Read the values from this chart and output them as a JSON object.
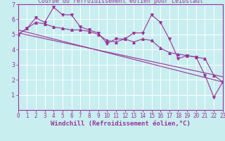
{
  "title": "Courbe du refroidissement éolien pour Leibstadt",
  "xlabel": "Windchill (Refroidissement éolien,°C)",
  "bg_color": "#c8eef0",
  "line_color": "#993399",
  "grid_color": "#ffffff",
  "axis_color": "#660066",
  "xlim": [
    0,
    23
  ],
  "ylim": [
    0,
    7
  ],
  "xticks": [
    0,
    1,
    2,
    3,
    4,
    5,
    6,
    7,
    8,
    9,
    10,
    11,
    12,
    13,
    14,
    15,
    16,
    17,
    18,
    19,
    20,
    21,
    22,
    23
  ],
  "yticks": [
    1,
    2,
    3,
    4,
    5,
    6,
    7
  ],
  "series1_x": [
    0,
    1,
    2,
    3,
    4,
    5,
    6,
    7,
    8,
    9,
    10,
    11,
    12,
    13,
    14,
    15,
    16,
    17,
    18,
    19,
    20,
    21,
    22,
    23
  ],
  "series1_y": [
    5.0,
    5.4,
    6.1,
    5.8,
    6.8,
    6.3,
    6.3,
    5.5,
    5.3,
    5.1,
    4.4,
    4.7,
    4.7,
    5.1,
    5.1,
    6.3,
    5.8,
    4.7,
    3.4,
    3.6,
    3.5,
    2.3,
    0.85,
    1.85
  ],
  "series2_x": [
    0,
    1,
    2,
    3,
    4,
    5,
    6,
    7,
    8,
    9,
    10,
    11,
    12,
    13,
    14,
    15,
    16,
    17,
    18,
    19,
    20,
    21,
    22,
    23
  ],
  "series2_y": [
    5.0,
    5.4,
    5.8,
    5.7,
    5.5,
    5.4,
    5.3,
    5.3,
    5.2,
    5.0,
    4.6,
    4.5,
    4.7,
    4.5,
    4.7,
    4.6,
    4.1,
    3.8,
    3.7,
    3.6,
    3.5,
    3.4,
    2.3,
    1.85
  ],
  "trend_x": [
    0,
    23
  ],
  "trend_y": [
    5.3,
    1.85
  ],
  "trend2_x": [
    0,
    23
  ],
  "trend2_y": [
    5.1,
    2.2
  ],
  "tick_fontsize": 5.5,
  "label_fontsize": 6.5
}
